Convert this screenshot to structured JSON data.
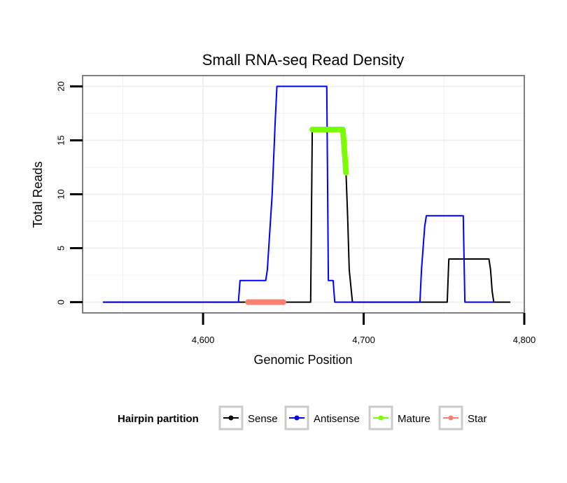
{
  "chart_data": {
    "type": "line",
    "title": "Small RNA-seq Read Density",
    "xlabel": "Genomic Position",
    "ylabel": "Total Reads",
    "xlim": [
      4525,
      4800
    ],
    "ylim": [
      -1,
      21
    ],
    "x_ticks": [
      4600,
      4700,
      4800
    ],
    "x_tick_labels": [
      "4,600",
      "4,700",
      "4,800"
    ],
    "y_ticks": [
      0,
      5,
      10,
      15,
      20
    ],
    "y_tick_labels": [
      "0",
      "5",
      "10",
      "15",
      "20"
    ],
    "grid": true,
    "legend_title": "Hairpin partition",
    "legend_position": "bottom",
    "series": [
      {
        "name": "Sense",
        "color": "#000000",
        "x": [
          4538,
          4667,
          4668,
          4687,
          4689,
          4690,
          4691,
          4693,
          4752,
          4753,
          4778,
          4779,
          4780,
          4781,
          4791
        ],
        "y": [
          0,
          0,
          16,
          16,
          12,
          8,
          3,
          0,
          0,
          4,
          4,
          3,
          1,
          0,
          0
        ]
      },
      {
        "name": "Antisense",
        "color": "#0000ff",
        "x": [
          4538,
          4622,
          4623,
          4639,
          4640,
          4643,
          4645,
          4646,
          4677,
          4678,
          4681,
          4682,
          4693,
          4735,
          4736,
          4738,
          4739,
          4762,
          4763,
          4781
        ],
        "y": [
          0,
          0,
          2,
          2,
          3,
          10,
          17,
          20,
          20,
          2,
          2,
          0,
          0,
          0,
          3,
          7,
          8,
          8,
          0,
          0
        ]
      },
      {
        "name": "Mature",
        "color": "#7cfc00",
        "x": [
          4668,
          4687,
          4689
        ],
        "y": [
          16,
          16,
          12
        ]
      },
      {
        "name": "Star",
        "color": "#fa8072",
        "x": [
          4628,
          4650
        ],
        "y": [
          0,
          0
        ]
      }
    ]
  }
}
